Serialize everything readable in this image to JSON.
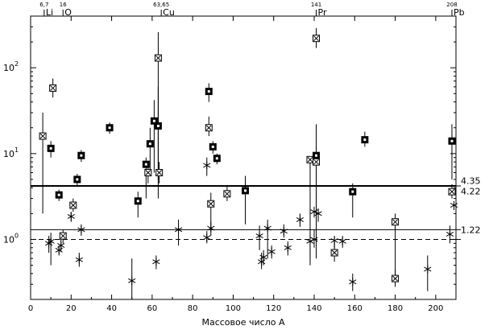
{
  "chart_data": {
    "type": "scatter",
    "title": "",
    "xlabel": "Массовое число A",
    "ylabel": "",
    "x_range": [
      0,
      210
    ],
    "y_range": [
      0.2,
      400
    ],
    "y_scale": "log",
    "x_ticks": [
      0,
      20,
      40,
      60,
      80,
      100,
      120,
      140,
      160,
      180,
      200
    ],
    "x_tick_labels": [
      "0",
      "20",
      "40",
      "60",
      "80",
      "100",
      "120",
      "140",
      "160",
      "180",
      "200"
    ],
    "y_ticks": [
      1,
      10,
      100
    ],
    "y_tick_labels": [
      {
        "base": "10",
        "exp": "0"
      },
      {
        "base": "10",
        "exp": "1"
      },
      {
        "base": "10",
        "exp": "2"
      }
    ],
    "top_markers": [
      {
        "x": 6.7,
        "number": "6,7",
        "symbol": "Li"
      },
      {
        "x": 16,
        "number": "16",
        "symbol": "O"
      },
      {
        "x": 64.5,
        "number": "63,65",
        "symbol": "Cu"
      },
      {
        "x": 141,
        "number": "141",
        "symbol": "Pr"
      },
      {
        "x": 208,
        "number": "208",
        "symbol": "Pb"
      }
    ],
    "reference_lines": [
      {
        "y": 4.2,
        "style": "solid-thick",
        "labels": [
          "4.35",
          "4.22"
        ]
      },
      {
        "y": 1.3,
        "style": "solid-thin",
        "labels": [
          "1.22"
        ]
      },
      {
        "y": 1.0,
        "style": "dashed",
        "labels": []
      }
    ],
    "series": [
      {
        "marker": "square-x",
        "points": [
          {
            "x": 6,
            "y": 16,
            "lo": 2,
            "hi": 30
          },
          {
            "x": 11,
            "y": 58,
            "lo": 45,
            "hi": 75
          },
          {
            "x": 16,
            "y": 1.1,
            "lo": 0.9,
            "hi": 1.3
          },
          {
            "x": 21,
            "y": 2.5,
            "lo": 2.1,
            "hi": 3.0
          },
          {
            "x": 58,
            "y": 6,
            "lo": 4.5,
            "hi": 8
          },
          {
            "x": 63,
            "y": 130,
            "lo": 3,
            "hi": 260
          },
          {
            "x": 63.5,
            "y": 6,
            "lo": 4.5,
            "hi": 8
          },
          {
            "x": 88,
            "y": 20,
            "lo": 16,
            "hi": 27
          },
          {
            "x": 89,
            "y": 2.6,
            "lo": 1.5,
            "hi": 3.5
          },
          {
            "x": 97,
            "y": 3.4,
            "lo": 2.8,
            "hi": 4.2
          },
          {
            "x": 138,
            "y": 8.5,
            "lo": 0.5,
            "hi": 9
          },
          {
            "x": 141,
            "y": 8,
            "lo": 0.6,
            "hi": 12
          },
          {
            "x": 141,
            "y": 220,
            "lo": 170,
            "hi": 290
          },
          {
            "x": 150,
            "y": 0.7,
            "lo": 0.55,
            "hi": 0.9
          },
          {
            "x": 180,
            "y": 1.6,
            "lo": 0.35,
            "hi": 2.0
          },
          {
            "x": 180,
            "y": 0.35,
            "lo": 0.28,
            "hi": 0.45
          },
          {
            "x": 208,
            "y": 3.6,
            "lo": 3.0,
            "hi": 4.4
          }
        ]
      },
      {
        "marker": "filled-square",
        "points": [
          {
            "x": 10,
            "y": 11.5,
            "lo": 9,
            "hi": 14
          },
          {
            "x": 14,
            "y": 3.3,
            "lo": 2.8,
            "hi": 3.8
          },
          {
            "x": 23,
            "y": 5,
            "lo": 4.2,
            "hi": 5.8
          },
          {
            "x": 25,
            "y": 9.5,
            "lo": 8,
            "hi": 11
          },
          {
            "x": 39,
            "y": 20,
            "lo": 17,
            "hi": 23
          },
          {
            "x": 53,
            "y": 2.8,
            "lo": 1.8,
            "hi": 3.6
          },
          {
            "x": 57,
            "y": 7.5,
            "lo": 3,
            "hi": 9
          },
          {
            "x": 59,
            "y": 13,
            "lo": 6,
            "hi": 20
          },
          {
            "x": 61,
            "y": 24,
            "lo": 6,
            "hi": 42
          },
          {
            "x": 63,
            "y": 21,
            "lo": 5,
            "hi": 60
          },
          {
            "x": 88,
            "y": 53,
            "lo": 40,
            "hi": 66
          },
          {
            "x": 90,
            "y": 12,
            "lo": 10,
            "hi": 14
          },
          {
            "x": 92,
            "y": 8.8,
            "lo": 7.5,
            "hi": 10
          },
          {
            "x": 106,
            "y": 3.7,
            "lo": 1.5,
            "hi": 5.5
          },
          {
            "x": 141,
            "y": 9.5,
            "lo": 1.2,
            "hi": 22
          },
          {
            "x": 159,
            "y": 3.6,
            "lo": 1.8,
            "hi": 4.5
          },
          {
            "x": 165,
            "y": 14.5,
            "lo": 12,
            "hi": 18
          },
          {
            "x": 208,
            "y": 14,
            "lo": 5,
            "hi": 22
          }
        ]
      },
      {
        "marker": "star",
        "points": [
          {
            "x": 9,
            "y": 0.9,
            "lo": 0.7,
            "hi": 1.1
          },
          {
            "x": 10,
            "y": 0.95,
            "lo": 0.5,
            "hi": 1.2
          },
          {
            "x": 14,
            "y": 0.75,
            "lo": 0.65,
            "hi": 0.85
          },
          {
            "x": 15,
            "y": 0.85,
            "lo": 0.72,
            "hi": 1.0
          },
          {
            "x": 20,
            "y": 1.85,
            "lo": 1.6,
            "hi": 2.1
          },
          {
            "x": 24,
            "y": 0.58,
            "lo": 0.48,
            "hi": 0.7
          },
          {
            "x": 25,
            "y": 1.3,
            "lo": 1.1,
            "hi": 1.5
          },
          {
            "x": 50,
            "y": 0.33,
            "lo": 0.2,
            "hi": 0.6
          },
          {
            "x": 62,
            "y": 0.55,
            "lo": 0.45,
            "hi": 0.65
          },
          {
            "x": 73,
            "y": 1.3,
            "lo": 0.85,
            "hi": 1.7
          },
          {
            "x": 87,
            "y": 7.3,
            "lo": 5.5,
            "hi": 9
          },
          {
            "x": 87,
            "y": 1.05,
            "lo": 0.9,
            "hi": 1.25
          },
          {
            "x": 89,
            "y": 1.35,
            "lo": 1.1,
            "hi": 1.6
          },
          {
            "x": 113,
            "y": 1.1,
            "lo": 0.75,
            "hi": 1.45
          },
          {
            "x": 114,
            "y": 0.55,
            "lo": 0.45,
            "hi": 0.7
          },
          {
            "x": 115,
            "y": 0.62,
            "lo": 0.5,
            "hi": 0.75
          },
          {
            "x": 117,
            "y": 1.35,
            "lo": 0.6,
            "hi": 1.7
          },
          {
            "x": 119,
            "y": 0.72,
            "lo": 0.6,
            "hi": 0.85
          },
          {
            "x": 125,
            "y": 1.25,
            "lo": 1.05,
            "hi": 1.5
          },
          {
            "x": 127,
            "y": 0.8,
            "lo": 0.65,
            "hi": 0.95
          },
          {
            "x": 133,
            "y": 1.7,
            "lo": 1.4,
            "hi": 2.0
          },
          {
            "x": 138,
            "y": 0.95,
            "lo": 0.6,
            "hi": 1.2
          },
          {
            "x": 140,
            "y": 1.0,
            "lo": 0.8,
            "hi": 1.3
          },
          {
            "x": 140,
            "y": 2.1,
            "lo": 1.8,
            "hi": 2.4
          },
          {
            "x": 142,
            "y": 2.0,
            "lo": 1.6,
            "hi": 2.3
          },
          {
            "x": 150,
            "y": 0.97,
            "lo": 0.8,
            "hi": 1.1
          },
          {
            "x": 154,
            "y": 0.95,
            "lo": 0.8,
            "hi": 1.1
          },
          {
            "x": 159,
            "y": 0.32,
            "lo": 0.25,
            "hi": 0.4
          },
          {
            "x": 196,
            "y": 0.45,
            "lo": 0.25,
            "hi": 0.65
          },
          {
            "x": 207,
            "y": 1.15,
            "lo": 0.9,
            "hi": 1.45
          },
          {
            "x": 209,
            "y": 2.5,
            "lo": 2.2,
            "hi": 2.8
          }
        ]
      }
    ]
  }
}
